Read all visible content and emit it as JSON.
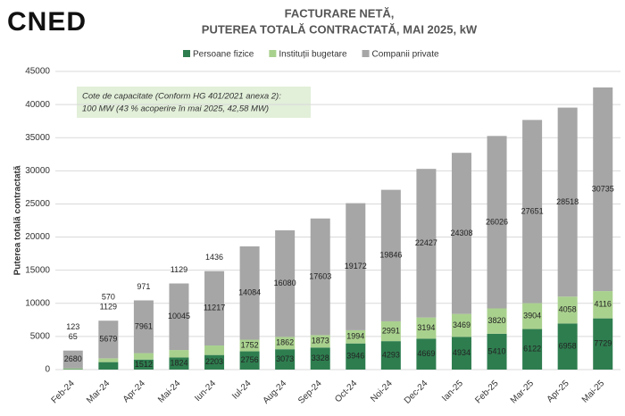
{
  "logo": "CNED",
  "chart_data": {
    "type": "stacked-bar",
    "title": "FACTURARE NETĂ,",
    "subtitle": "PUTEREA TOTALĂ CONTRACTATĂ, MAI 2025, kW",
    "y_label": "Puterea totală contractată",
    "annotation": [
      "Cote de capacitate (Conform HG 401/2021 anexa 2):",
      "100 MW (43 % acoperire în mai 2025, 42,58 MW)"
    ],
    "categories": [
      "Feb-24",
      "Mar-24",
      "Apr-24",
      "Mai-24",
      "Iun-24",
      "Iul-24",
      "Aug-24",
      "Sep-24",
      "Oct-24",
      "Noi-24",
      "Dec-24",
      "Ian-25",
      "Feb-25",
      "Mar-25",
      "Apr-25",
      "Mai-25"
    ],
    "series": [
      {
        "name": "Persoane fizice",
        "color": "#2e7d4f",
        "values": [
          65,
          1129,
          1512,
          1824,
          2203,
          2756,
          3073,
          3328,
          3946,
          4293,
          4669,
          4934,
          5410,
          6122,
          6958,
          7729
        ]
      },
      {
        "name": "Instituții bugetare",
        "color": "#a9d18e",
        "values": [
          123,
          570,
          971,
          1129,
          1436,
          1752,
          1862,
          1873,
          1994,
          2991,
          3194,
          3469,
          3820,
          3904,
          4058,
          4116
        ]
      },
      {
        "name": "Companii private",
        "color": "#a6a6a6",
        "values": [
          2680,
          5679,
          7961,
          10045,
          11217,
          14084,
          16080,
          17603,
          19172,
          19846,
          22427,
          24308,
          26026,
          27651,
          28518,
          30735
        ]
      }
    ],
    "ylim": [
      0,
      45000
    ],
    "yticks": [
      0,
      5000,
      10000,
      15000,
      20000,
      25000,
      30000,
      35000,
      40000,
      45000
    ],
    "grid": true
  }
}
